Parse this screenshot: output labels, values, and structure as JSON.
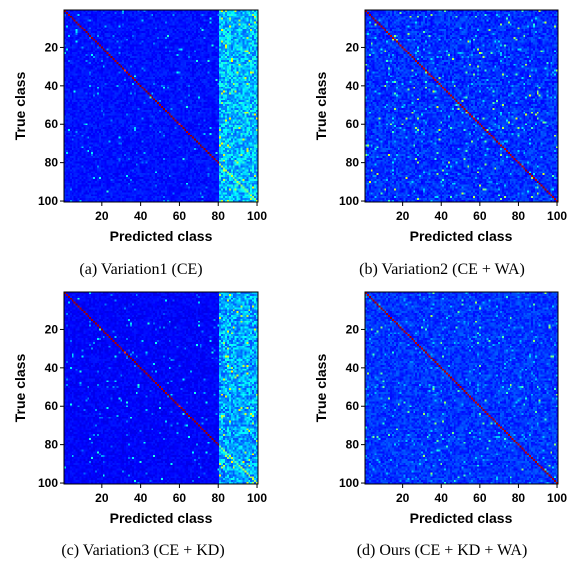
{
  "chart_data": [
    {
      "type": "heatmap",
      "caption": "(a) Variation1 (CE)",
      "xlabel": "Predicted class",
      "ylabel": "True class",
      "n_classes": 100,
      "xticks": [
        20,
        40,
        60,
        80,
        100
      ],
      "yticks": [
        20,
        40,
        60,
        80,
        100
      ],
      "variant": "ce",
      "seed": 11
    },
    {
      "type": "heatmap",
      "caption": "(b) Variation2 (CE + WA)",
      "xlabel": "Predicted class",
      "ylabel": "True class",
      "n_classes": 100,
      "xticks": [
        20,
        40,
        60,
        80,
        100
      ],
      "yticks": [
        20,
        40,
        60,
        80,
        100
      ],
      "variant": "wa",
      "seed": 23
    },
    {
      "type": "heatmap",
      "caption": "(c) Variation3 (CE + KD)",
      "xlabel": "Predicted class",
      "ylabel": "True class",
      "n_classes": 100,
      "xticks": [
        20,
        40,
        60,
        80,
        100
      ],
      "yticks": [
        20,
        40,
        60,
        80,
        100
      ],
      "variant": "kd",
      "seed": 37
    },
    {
      "type": "heatmap",
      "caption": "(d) Ours (CE + KD + WA)",
      "xlabel": "Predicted class",
      "ylabel": "True class",
      "n_classes": 100,
      "xticks": [
        20,
        40,
        60,
        80,
        100
      ],
      "yticks": [
        20,
        40,
        60,
        80,
        100
      ],
      "variant": "ours",
      "seed": 53
    }
  ],
  "colormap": "jet"
}
